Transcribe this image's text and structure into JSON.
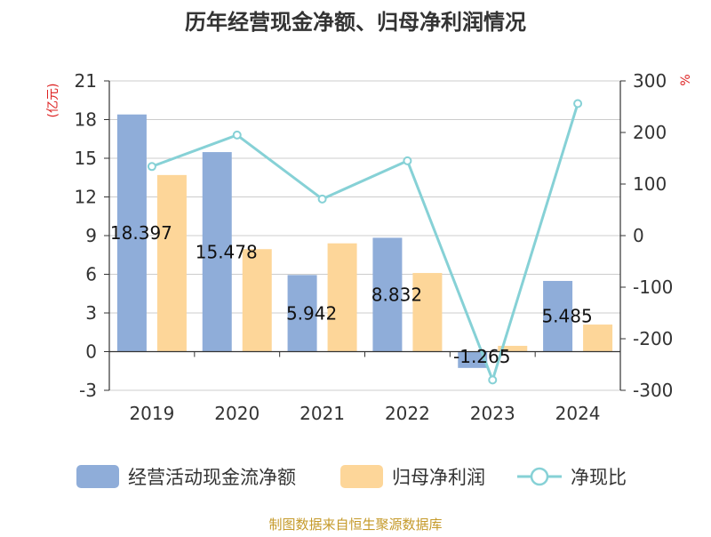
{
  "title": "历年经营现金净额、归母净利润情况",
  "source": "制图数据来自恒生聚源数据库",
  "colors": {
    "bar_primary": "#8fadd9",
    "bar_secondary": "#fdd699",
    "line": "#86d1d6",
    "grid": "#cccccc",
    "axis": "#333333",
    "title": "#333333",
    "unit_red": "#dd2222",
    "source_gold": "#c59a2a"
  },
  "chart_data": {
    "type": "bar",
    "title": "历年经营现金净额、归母净利润情况",
    "categories": [
      "2019",
      "2020",
      "2021",
      "2022",
      "2023",
      "2024"
    ],
    "left_axis": {
      "unit": "(亿元)",
      "ylim": [
        -3,
        21
      ],
      "ticks": [
        "-3",
        "0",
        "3",
        "6",
        "9",
        "12",
        "15",
        "18",
        "21"
      ]
    },
    "right_axis": {
      "unit": "%",
      "ylim": [
        -300,
        300
      ],
      "ticks": [
        "-300",
        "-200",
        "-100",
        "0",
        "100",
        "200",
        "300"
      ]
    },
    "grid": true,
    "legend_position": "bottom",
    "series": [
      {
        "name": "经营活动现金流净额",
        "type": "bar",
        "axis": "left",
        "values": [
          18.397,
          15.478,
          5.942,
          8.832,
          -1.265,
          5.485
        ],
        "labels": [
          "18.397",
          "15.478",
          "5.942",
          "8.832",
          "-1.265",
          "5.485"
        ]
      },
      {
        "name": "归母净利润",
        "type": "bar",
        "axis": "left",
        "values": [
          13.7,
          7.95,
          8.4,
          6.1,
          0.45,
          2.1
        ]
      },
      {
        "name": "净现比",
        "type": "line",
        "axis": "right",
        "values": [
          134,
          195,
          71,
          145,
          -280,
          256
        ]
      }
    ]
  }
}
